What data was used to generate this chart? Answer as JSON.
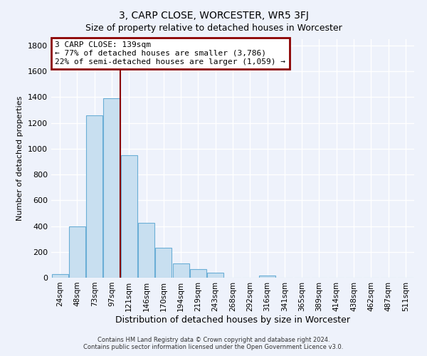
{
  "title": "3, CARP CLOSE, WORCESTER, WR5 3FJ",
  "subtitle": "Size of property relative to detached houses in Worcester",
  "xlabel": "Distribution of detached houses by size in Worcester",
  "ylabel": "Number of detached properties",
  "bar_labels": [
    "24sqm",
    "48sqm",
    "73sqm",
    "97sqm",
    "121sqm",
    "146sqm",
    "170sqm",
    "194sqm",
    "219sqm",
    "243sqm",
    "268sqm",
    "292sqm",
    "316sqm",
    "341sqm",
    "365sqm",
    "389sqm",
    "414sqm",
    "438sqm",
    "462sqm",
    "487sqm",
    "511sqm"
  ],
  "bar_values": [
    25,
    400,
    1260,
    1390,
    950,
    425,
    230,
    110,
    65,
    40,
    0,
    0,
    15,
    0,
    0,
    0,
    0,
    0,
    0,
    0,
    0
  ],
  "bar_color": "#c8dff0",
  "bar_edge_color": "#6baed6",
  "vline_x": 3.5,
  "vline_color": "#8b0000",
  "annotation_title": "3 CARP CLOSE: 139sqm",
  "annotation_line1": "← 77% of detached houses are smaller (3,786)",
  "annotation_line2": "22% of semi-detached houses are larger (1,059) →",
  "annotation_box_color": "#ffffff",
  "annotation_box_edge": "#8b0000",
  "ylim": [
    0,
    1850
  ],
  "yticks": [
    0,
    200,
    400,
    600,
    800,
    1000,
    1200,
    1400,
    1600,
    1800
  ],
  "footer_line1": "Contains HM Land Registry data © Crown copyright and database right 2024.",
  "footer_line2": "Contains public sector information licensed under the Open Government Licence v3.0.",
  "bg_color": "#eef2fb",
  "grid_color": "#ffffff"
}
